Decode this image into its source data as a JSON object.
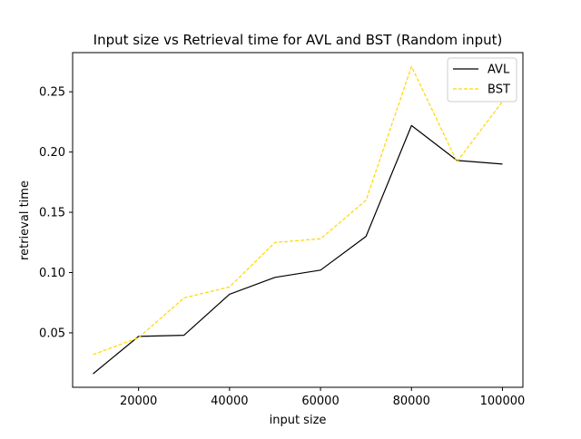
{
  "chart_data": {
    "type": "line",
    "title": "Input size vs Retrieval time for AVL and BST (Random input)",
    "xlabel": "input size",
    "ylabel": "retrieval time",
    "xlim": [
      5500,
      104500
    ],
    "ylim": [
      0.0048,
      0.2825
    ],
    "xticks": [
      20000,
      40000,
      60000,
      80000,
      100000
    ],
    "yticks": [
      0.05,
      0.1,
      0.15,
      0.2,
      0.25
    ],
    "xtick_labels": [
      "20000",
      "40000",
      "60000",
      "80000",
      "100000"
    ],
    "ytick_labels": [
      "0.05",
      "0.10",
      "0.15",
      "0.20",
      "0.25"
    ],
    "grid": false,
    "legend_position": "upper right",
    "x": [
      10000,
      20000,
      30000,
      40000,
      50000,
      60000,
      70000,
      80000,
      90000,
      100000
    ],
    "series": [
      {
        "name": "AVL",
        "color": "#000000",
        "style": "solid",
        "values": [
          0.016,
          0.047,
          0.048,
          0.082,
          0.096,
          0.102,
          0.13,
          0.222,
          0.193,
          0.19
        ]
      },
      {
        "name": "BST",
        "color": "#ffd700",
        "style": "dashed",
        "values": [
          0.032,
          0.046,
          0.079,
          0.088,
          0.125,
          0.128,
          0.16,
          0.271,
          0.192,
          0.242
        ]
      }
    ]
  }
}
